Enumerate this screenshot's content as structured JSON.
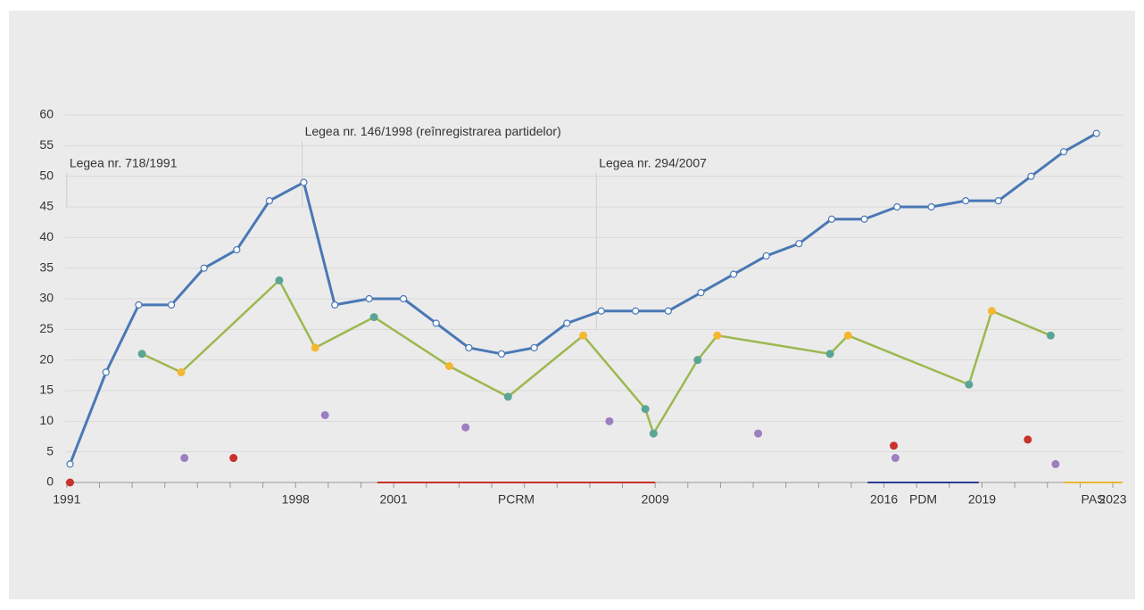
{
  "chart_data": {
    "type": "line",
    "xlim": [
      1990.95,
      2023.3
    ],
    "ylim": [
      0,
      60
    ],
    "yticks": [
      0,
      5,
      10,
      15,
      20,
      25,
      30,
      35,
      40,
      45,
      50,
      55,
      60
    ],
    "xticks": [
      1991,
      1998,
      2001,
      2009,
      2016,
      2019,
      2023
    ],
    "minor_xticks": [
      1992,
      1993,
      1994,
      1995,
      1996,
      1997,
      1999,
      2000,
      2002,
      2003,
      2004,
      2005,
      2006,
      2007,
      2008,
      2010,
      2011,
      2012,
      2013,
      2014,
      2015,
      2017,
      2018,
      2020,
      2021,
      2022
    ],
    "grid": true,
    "series": [
      {
        "color": "#4a78b5",
        "marker_color": "#ffffff",
        "x": [
          1991.1,
          1992.2,
          1993.2,
          1994.2,
          1995.2,
          1996.2,
          1997.2,
          1998.25,
          1999.2,
          2000.25,
          2001.3,
          2002.3,
          2003.3,
          2004.3,
          2005.3,
          2006.3,
          2007.35,
          2008.4,
          2009.4,
          2010.4,
          2011.4,
          2012.4,
          2013.4,
          2014.4,
          2015.4,
          2016.4,
          2017.45,
          2018.5,
          2019.5,
          2020.5,
          2021.5,
          2022.5
        ],
        "values": [
          3,
          18,
          29,
          29,
          35,
          38,
          46,
          49,
          29,
          30,
          30,
          26,
          22,
          21,
          22,
          26,
          28,
          28,
          28,
          31,
          34,
          37,
          39,
          43,
          43,
          45,
          45,
          46,
          46,
          50,
          54,
          57
        ]
      },
      {
        "color": "#9cb84f",
        "x": [
          1993.3,
          1994.5,
          1997.5,
          1998.6,
          2000.4,
          2002.7,
          2004.5,
          2006.8,
          2008.7,
          2008.95,
          2010.3,
          2010.9,
          2014.35,
          2014.9,
          2018.6,
          2019.3,
          2021.1
        ],
        "values": [
          21,
          18,
          33,
          22,
          27,
          19,
          14,
          24,
          12,
          8,
          20,
          24,
          21,
          24,
          16,
          28,
          24
        ],
        "marker_colors": [
          "#5aa596",
          "#f5b731",
          "#5aa596",
          "#f5b731",
          "#5aa596",
          "#f5b731",
          "#5aa596",
          "#f5b731",
          "#5aa596",
          "#5aa596",
          "#5aa596",
          "#f5b731",
          "#5aa596",
          "#f5b731",
          "#5aa596",
          "#f5b731",
          "#5aa596"
        ]
      },
      {
        "type": "scatter",
        "color": "#9b7fc0",
        "x": [
          1994.6,
          1998.9,
          2003.2,
          2007.6,
          2012.15,
          2016.35,
          2021.25
        ],
        "values": [
          4,
          11,
          9,
          10,
          8,
          4,
          3
        ]
      },
      {
        "type": "scatter",
        "color": "#c8322b",
        "x": [
          1991.1,
          1996.1,
          2016.3,
          2020.4
        ],
        "values": [
          0,
          4,
          6,
          7
        ]
      }
    ],
    "annotations": [
      {
        "x": 1991,
        "text": "Legea nr. 718/1991",
        "y": 52
      },
      {
        "x": 1998.2,
        "text": "Legea nr. 146/1998 (reînregistrarea partidelor)",
        "y": 57.2
      },
      {
        "x": 2007.2,
        "text": "Legea nr. 294/2007",
        "y": 52
      }
    ],
    "periods": [
      {
        "label": "PCRM",
        "start": 2000.5,
        "end": 2009,
        "color": "#c8322b"
      },
      {
        "label": "PDM",
        "start": 2015.5,
        "end": 2018.9,
        "color": "#2c3b8f"
      },
      {
        "label": "PAS",
        "start": 2021.5,
        "end": 2023.3,
        "color": "#e8b730"
      }
    ]
  }
}
